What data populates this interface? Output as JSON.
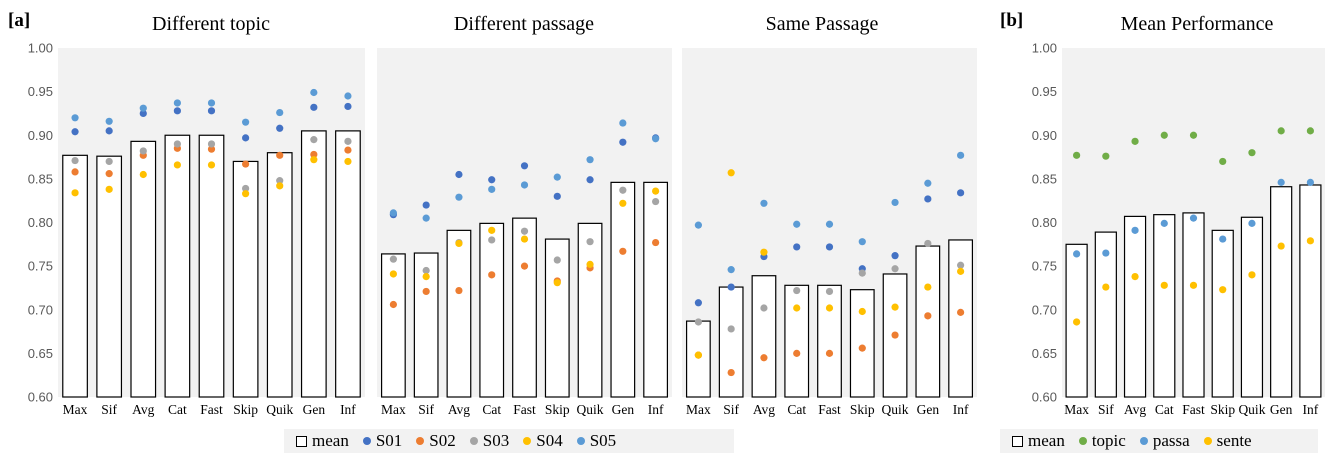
{
  "panel_labels": {
    "a": "[a]",
    "b": "[b]"
  },
  "colors": {
    "S01": "#4472c4",
    "S02": "#ed7d31",
    "S03": "#a5a5a5",
    "S04": "#ffc000",
    "S05": "#5b9bd5",
    "topic": "#70ad47",
    "passa": "#5b9bd5",
    "sente": "#ffc000",
    "panel_bg": "#f2f2f2"
  },
  "legend_a": [
    {
      "key": "mean",
      "label": "mean",
      "kind": "box"
    },
    {
      "key": "S01",
      "label": "S01",
      "kind": "dot"
    },
    {
      "key": "S02",
      "label": "S02",
      "kind": "dot"
    },
    {
      "key": "S03",
      "label": "S03",
      "kind": "dot"
    },
    {
      "key": "S04",
      "label": "S04",
      "kind": "dot"
    },
    {
      "key": "S05",
      "label": "S05",
      "kind": "dot"
    }
  ],
  "legend_b": [
    {
      "key": "mean",
      "label": "mean",
      "kind": "box"
    },
    {
      "key": "topic",
      "label": "topic",
      "kind": "dot"
    },
    {
      "key": "passa",
      "label": "passa",
      "kind": "dot"
    },
    {
      "key": "sente",
      "label": "sente",
      "kind": "dot"
    }
  ],
  "chart_data": [
    {
      "type": "bar",
      "title": "Different topic",
      "categories": [
        "Max",
        "Sif",
        "Avg",
        "Cat",
        "Fast",
        "Skip",
        "Quik",
        "Gen",
        "Inf"
      ],
      "ylim": [
        0.6,
        1.0
      ],
      "yticks": [
        "0.60",
        "0.65",
        "0.70",
        "0.75",
        "0.80",
        "0.85",
        "0.90",
        "0.95",
        "1.00"
      ],
      "bars": {
        "name": "mean",
        "values": [
          0.877,
          0.876,
          0.893,
          0.9,
          0.9,
          0.87,
          0.88,
          0.905,
          0.905
        ]
      },
      "series": [
        {
          "name": "S01",
          "values": [
            0.904,
            0.905,
            0.925,
            0.928,
            0.928,
            0.897,
            0.908,
            0.932,
            0.933
          ]
        },
        {
          "name": "S02",
          "values": [
            0.858,
            0.856,
            0.877,
            0.885,
            0.884,
            0.867,
            0.877,
            0.878,
            0.883
          ]
        },
        {
          "name": "S03",
          "values": [
            0.871,
            0.87,
            0.882,
            0.89,
            0.89,
            0.839,
            0.848,
            0.895,
            0.893
          ]
        },
        {
          "name": "S04",
          "values": [
            0.834,
            0.838,
            0.855,
            0.866,
            0.866,
            0.833,
            0.842,
            0.872,
            0.87
          ]
        },
        {
          "name": "S05",
          "values": [
            0.92,
            0.916,
            0.931,
            0.937,
            0.937,
            0.915,
            0.926,
            0.949,
            0.945
          ]
        }
      ]
    },
    {
      "type": "bar",
      "title": "Different passage",
      "categories": [
        "Max",
        "Sif",
        "Avg",
        "Cat",
        "Fast",
        "Skip",
        "Quik",
        "Gen",
        "Inf"
      ],
      "ylim": [
        0.6,
        1.0
      ],
      "bars": {
        "name": "mean",
        "values": [
          0.764,
          0.765,
          0.791,
          0.799,
          0.805,
          0.781,
          0.799,
          0.846,
          0.846
        ]
      },
      "series": [
        {
          "name": "S01",
          "values": [
            0.809,
            0.82,
            0.855,
            0.849,
            0.865,
            0.83,
            0.849,
            0.892,
            0.897
          ]
        },
        {
          "name": "S02",
          "values": [
            0.706,
            0.721,
            0.722,
            0.74,
            0.75,
            0.733,
            0.748,
            0.767,
            0.777
          ]
        },
        {
          "name": "S03",
          "values": [
            0.758,
            0.745,
            0.777,
            0.78,
            0.79,
            0.757,
            0.778,
            0.837,
            0.824
          ]
        },
        {
          "name": "S04",
          "values": [
            0.741,
            0.738,
            0.776,
            0.791,
            0.781,
            0.731,
            0.752,
            0.822,
            0.836
          ]
        },
        {
          "name": "S05",
          "values": [
            0.811,
            0.805,
            0.829,
            0.838,
            0.843,
            0.852,
            0.872,
            0.914,
            0.896
          ]
        }
      ]
    },
    {
      "type": "bar",
      "title": "Same Passage",
      "categories": [
        "Max",
        "Sif",
        "Avg",
        "Cat",
        "Fast",
        "Skip",
        "Quik",
        "Gen",
        "Inf"
      ],
      "ylim": [
        0.6,
        1.0
      ],
      "bars": {
        "name": "mean",
        "values": [
          0.687,
          0.726,
          0.739,
          0.728,
          0.728,
          0.723,
          0.741,
          0.773,
          0.78
        ]
      },
      "series": [
        {
          "name": "S01",
          "values": [
            0.708,
            0.726,
            0.761,
            0.772,
            0.772,
            0.747,
            0.762,
            0.827,
            0.834
          ]
        },
        {
          "name": "S02",
          "values": [
            0.648,
            0.628,
            0.645,
            0.65,
            0.65,
            0.656,
            0.671,
            0.693,
            0.697
          ]
        },
        {
          "name": "S03",
          "values": [
            0.686,
            0.678,
            0.702,
            0.722,
            0.721,
            0.742,
            0.747,
            0.776,
            0.751
          ]
        },
        {
          "name": "S04",
          "values": [
            0.648,
            0.857,
            0.766,
            0.702,
            0.702,
            0.698,
            0.703,
            0.726,
            0.744
          ]
        },
        {
          "name": "S05",
          "values": [
            0.797,
            0.746,
            0.822,
            0.798,
            0.798,
            0.778,
            0.823,
            0.845,
            0.877
          ]
        }
      ]
    },
    {
      "type": "bar",
      "title": "Mean Performance",
      "categories": [
        "Max",
        "Sif",
        "Avg",
        "Cat",
        "Fast",
        "Skip",
        "Quik",
        "Gen",
        "Inf"
      ],
      "ylim": [
        0.6,
        1.0
      ],
      "yticks": [
        "0.60",
        "0.65",
        "0.70",
        "0.75",
        "0.80",
        "0.85",
        "0.90",
        "0.95",
        "1.00"
      ],
      "bars": {
        "name": "mean",
        "values": [
          0.775,
          0.789,
          0.807,
          0.809,
          0.811,
          0.791,
          0.806,
          0.841,
          0.843
        ]
      },
      "series": [
        {
          "name": "topic",
          "values": [
            0.877,
            0.876,
            0.893,
            0.9,
            0.9,
            0.87,
            0.88,
            0.905,
            0.905
          ]
        },
        {
          "name": "passa",
          "values": [
            0.764,
            0.765,
            0.791,
            0.799,
            0.805,
            0.781,
            0.799,
            0.846,
            0.846
          ]
        },
        {
          "name": "sente",
          "values": [
            0.686,
            0.726,
            0.738,
            0.728,
            0.728,
            0.723,
            0.74,
            0.773,
            0.779
          ]
        }
      ]
    }
  ]
}
